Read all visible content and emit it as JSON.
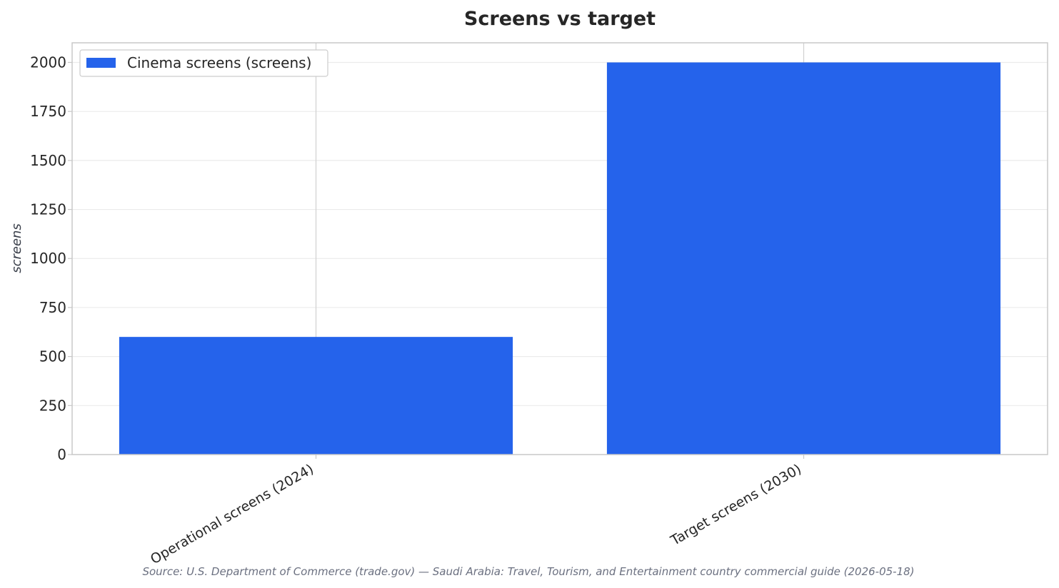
{
  "chart_data": {
    "type": "bar",
    "title": "Screens vs target",
    "xlabel": "",
    "ylabel": "screens",
    "categories": [
      "Operational screens (2024)",
      "Target screens (2030)"
    ],
    "series": [
      {
        "name": "Cinema screens (screens)",
        "values": [
          600,
          2000
        ],
        "color": "#2563eb"
      }
    ],
    "ylim": [
      0,
      2100
    ],
    "yticks": [
      0,
      250,
      500,
      750,
      1000,
      1250,
      1500,
      1750,
      2000
    ],
    "grid": true,
    "legend_position": "top-left"
  },
  "source_note": "Source: U.S. Department of Commerce (trade.gov) — Saudi Arabia: Travel, Tourism, and Entertainment country commercial guide (2026-05-18)"
}
